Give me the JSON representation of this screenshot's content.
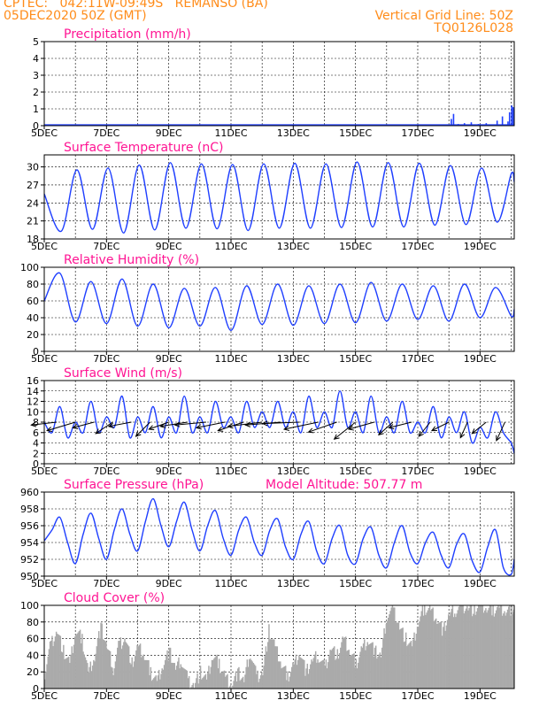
{
  "header": {
    "line1": "CPTEC:   042:11W-09:49S   REMANSO (BA)",
    "line2": "05DEC2020 50Z (GMT)",
    "grid_note": "Vertical Grid Line: 50Z",
    "code": "TQ0126L028"
  },
  "colors": {
    "header": "#ff8c1a",
    "title": "#ff1493",
    "series": "#1f3fff",
    "cloud_fill": "#aaaaaa",
    "axis_text": "#000000"
  },
  "chart_data": [
    {
      "type": "bar",
      "title": "Precipitation (mm/h)",
      "ylim": [
        0,
        5
      ],
      "yticks": [
        0,
        1,
        2,
        3,
        4,
        5
      ],
      "xlim": [
        0,
        15.1
      ],
      "xtick_labels": [
        "5DEC",
        "7DEC",
        "9DEC",
        "11DEC",
        "13DEC",
        "15DEC",
        "17DEC",
        "19DEC"
      ],
      "grid": true,
      "series": [
        {
          "x": [
            13.08,
            13.15,
            13.3,
            13.5,
            13.72,
            13.95,
            14.2,
            14.55,
            14.72,
            14.9,
            14.95,
            15.02,
            15.07
          ],
          "values": [
            0.4,
            0.7,
            0.1,
            0.15,
            0.2,
            0.1,
            0.15,
            0.3,
            0.55,
            0.25,
            0.8,
            1.2,
            1.1
          ]
        }
      ]
    },
    {
      "type": "line",
      "title": "Surface Temperature (nC)",
      "ylim": [
        18,
        32
      ],
      "yticks": [
        18,
        21,
        24,
        27,
        30
      ],
      "xlim": [
        0,
        15.1
      ],
      "xtick_labels": [
        "5DEC",
        "7DEC",
        "9DEC",
        "11DEC",
        "13DEC",
        "15DEC",
        "17DEC",
        "19DEC"
      ],
      "grid": true,
      "series": [
        {
          "x": [
            0,
            0.55,
            1.05,
            1.55,
            2.05,
            2.55,
            3.05,
            3.55,
            4.05,
            4.55,
            5.05,
            5.55,
            6.05,
            6.55,
            7.05,
            7.55,
            8.05,
            8.55,
            9.05,
            9.55,
            10.05,
            10.55,
            11.05,
            11.55,
            12.05,
            12.55,
            13.05,
            13.55,
            14.05,
            14.55,
            15.0,
            15.1
          ],
          "values": [
            25.5,
            19.3,
            29.5,
            19.6,
            29.8,
            19.0,
            30.3,
            19.5,
            30.7,
            19.8,
            30.5,
            19.7,
            30.4,
            19.4,
            30.5,
            19.8,
            30.6,
            19.8,
            30.5,
            19.9,
            30.8,
            20.0,
            30.7,
            20.0,
            30.6,
            20.3,
            30.2,
            20.4,
            29.8,
            20.8,
            28.8,
            27.5
          ]
        }
      ]
    },
    {
      "type": "line",
      "title": "Relative Humidity (%)",
      "ylim": [
        0,
        100
      ],
      "yticks": [
        0,
        20,
        40,
        60,
        80,
        100
      ],
      "xlim": [
        0,
        15.1
      ],
      "xtick_labels": [
        "5DEC",
        "7DEC",
        "9DEC",
        "11DEC",
        "13DEC",
        "15DEC",
        "17DEC",
        "19DEC"
      ],
      "grid": true,
      "series": [
        {
          "x": [
            0,
            0.5,
            1.0,
            1.5,
            2.0,
            2.5,
            3.0,
            3.5,
            4.0,
            4.5,
            5.0,
            5.5,
            6.0,
            6.5,
            7.0,
            7.5,
            8.0,
            8.5,
            9.0,
            9.5,
            10.0,
            10.5,
            11.0,
            11.5,
            12.0,
            12.5,
            13.0,
            13.5,
            14.0,
            14.5,
            15.0,
            15.1
          ],
          "values": [
            60,
            93,
            35,
            83,
            33,
            86,
            30,
            80,
            28,
            75,
            30,
            76,
            25,
            78,
            32,
            80,
            31,
            78,
            33,
            80,
            34,
            82,
            36,
            80,
            38,
            78,
            36,
            80,
            40,
            76,
            42,
            50
          ]
        }
      ]
    },
    {
      "type": "line",
      "title": "Surface Wind (m/s)",
      "ylim": [
        0,
        16
      ],
      "yticks": [
        0,
        2,
        4,
        6,
        8,
        10,
        12,
        14,
        16
      ],
      "xlim": [
        0,
        15.1
      ],
      "xtick_labels": [
        "5DEC",
        "7DEC",
        "9DEC",
        "11DEC",
        "13DEC",
        "15DEC",
        "17DEC",
        "19DEC"
      ],
      "grid": true,
      "series": [
        {
          "x": [
            0,
            0.25,
            0.5,
            0.75,
            1.0,
            1.25,
            1.5,
            1.75,
            2.0,
            2.25,
            2.5,
            2.75,
            3.0,
            3.25,
            3.5,
            3.75,
            4.0,
            4.25,
            4.5,
            4.75,
            5.0,
            5.25,
            5.5,
            5.75,
            6.0,
            6.25,
            6.5,
            6.75,
            7.0,
            7.25,
            7.5,
            7.75,
            8.0,
            8.25,
            8.5,
            8.75,
            9.0,
            9.25,
            9.5,
            9.75,
            10.0,
            10.25,
            10.5,
            10.75,
            11.0,
            11.25,
            11.5,
            11.75,
            12.0,
            12.25,
            12.5,
            12.75,
            13.0,
            13.25,
            13.5,
            13.75,
            14.0,
            14.25,
            14.5,
            14.75,
            15.0,
            15.1
          ],
          "values": [
            8,
            6,
            11,
            5,
            8,
            6,
            12,
            6,
            9,
            7,
            13,
            5,
            9,
            6,
            11,
            5,
            9,
            6,
            13,
            6,
            9,
            6,
            12,
            7,
            9,
            6,
            12,
            7,
            10,
            7,
            12,
            7,
            10,
            6,
            13,
            7,
            10,
            7,
            14,
            7,
            10,
            6,
            13,
            6,
            9,
            6,
            12,
            6,
            8,
            6,
            11,
            5,
            9,
            6,
            10,
            4,
            7,
            5,
            10,
            6,
            4,
            2
          ]
        }
      ],
      "wind_arrows": {
        "x": [
          0.4,
          1.0,
          1.6,
          2.2,
          2.8,
          3.4,
          4.0,
          4.6,
          5.2,
          5.8,
          6.4,
          7.0,
          7.6,
          8.2,
          8.8,
          9.4,
          10.0,
          10.6,
          11.2,
          11.8,
          12.4,
          13.0,
          13.6,
          14.2,
          14.8
        ],
        "u": [
          -1.8,
          -2.0,
          -1.5,
          -1.2,
          -1.6,
          -1.0,
          -1.4,
          -1.9,
          -2.2,
          -2.0,
          -1.8,
          -2.4,
          -2.5,
          -2.6,
          -2.4,
          -2.0,
          -1.5,
          -1.8,
          -1.0,
          -1.6,
          -0.8,
          -1.2,
          -0.5,
          -1.0,
          -0.6
        ],
        "v": [
          -0.2,
          -0.6,
          -0.4,
          -0.8,
          -0.3,
          -1.0,
          -0.5,
          -0.3,
          -0.2,
          -0.4,
          -0.6,
          -0.3,
          -0.2,
          -0.1,
          -0.5,
          -0.7,
          -1.2,
          -0.5,
          -0.9,
          -0.4,
          -1.0,
          -0.6,
          -1.1,
          -0.8,
          -1.3
        ]
      }
    },
    {
      "type": "line",
      "title": "Surface Pressure (hPa)",
      "subtitle": "Model Altitude: 507.77 m",
      "ylim": [
        950,
        960
      ],
      "yticks": [
        950,
        952,
        954,
        956,
        958,
        960
      ],
      "xlim": [
        0,
        15.1
      ],
      "xtick_labels": [
        "5DEC",
        "7DEC",
        "9DEC",
        "11DEC",
        "13DEC",
        "15DEC",
        "17DEC",
        "19DEC"
      ],
      "grid": true,
      "series": [
        {
          "x": [
            0,
            0.25,
            0.5,
            0.75,
            1.0,
            1.25,
            1.5,
            1.75,
            2.0,
            2.25,
            2.5,
            2.75,
            3.0,
            3.25,
            3.5,
            3.75,
            4.0,
            4.25,
            4.5,
            4.75,
            5.0,
            5.25,
            5.5,
            5.75,
            6.0,
            6.25,
            6.5,
            6.75,
            7.0,
            7.25,
            7.5,
            7.75,
            8.0,
            8.25,
            8.5,
            8.75,
            9.0,
            9.25,
            9.5,
            9.75,
            10.0,
            10.25,
            10.5,
            10.75,
            11.0,
            11.25,
            11.5,
            11.75,
            12.0,
            12.25,
            12.5,
            12.75,
            13.0,
            13.25,
            13.5,
            13.75,
            14.0,
            14.25,
            14.5,
            14.75,
            15.0,
            15.1
          ],
          "values": [
            954.2,
            955.5,
            957.0,
            954.0,
            951.5,
            955.0,
            957.5,
            954.5,
            952.0,
            955.5,
            958.0,
            955.0,
            953.0,
            956.5,
            959.2,
            956.0,
            953.5,
            956.5,
            958.8,
            955.5,
            953.0,
            956.0,
            957.8,
            954.5,
            952.5,
            955.5,
            957.0,
            954.0,
            952.5,
            955.5,
            956.8,
            953.5,
            952.0,
            955.0,
            956.5,
            953.0,
            951.5,
            954.5,
            956.0,
            952.5,
            951.5,
            954.5,
            955.8,
            952.5,
            951.0,
            954.0,
            956.0,
            952.8,
            951.5,
            954.0,
            955.2,
            952.5,
            951.0,
            953.8,
            955.0,
            951.8,
            950.5,
            953.5,
            955.5,
            951.0,
            950.2,
            952.0
          ]
        }
      ]
    },
    {
      "type": "area",
      "title": "Cloud Cover (%)",
      "ylim": [
        0,
        100
      ],
      "yticks": [
        0,
        20,
        40,
        60,
        80,
        100
      ],
      "xlim": [
        0,
        15.1
      ],
      "xtick_labels": [
        "5DEC",
        "7DEC",
        "9DEC",
        "11DEC",
        "13DEC",
        "15DEC",
        "17DEC",
        "19DEC"
      ],
      "grid": true,
      "series": [
        {
          "x": [
            0,
            0.2,
            0.4,
            0.6,
            0.8,
            1.0,
            1.2,
            1.4,
            1.6,
            1.8,
            2.0,
            2.2,
            2.4,
            2.6,
            2.8,
            3.0,
            3.2,
            3.4,
            3.6,
            3.8,
            4.0,
            4.2,
            4.4,
            4.6,
            4.8,
            5.0,
            5.2,
            5.4,
            5.6,
            5.8,
            6.0,
            6.2,
            6.4,
            6.6,
            6.8,
            7.0,
            7.2,
            7.4,
            7.6,
            7.8,
            8.0,
            8.2,
            8.4,
            8.6,
            8.8,
            9.0,
            9.2,
            9.4,
            9.6,
            9.8,
            10.0,
            10.2,
            10.4,
            10.6,
            10.8,
            11.0,
            11.2,
            11.4,
            11.6,
            11.8,
            12.0,
            12.2,
            12.4,
            12.6,
            12.8,
            13.0,
            13.2,
            13.4,
            13.6,
            13.8,
            14.0,
            14.2,
            14.4,
            14.6,
            14.8,
            15.0,
            15.1
          ],
          "values": [
            20,
            55,
            70,
            45,
            30,
            70,
            60,
            20,
            40,
            75,
            50,
            25,
            55,
            60,
            30,
            50,
            40,
            20,
            10,
            30,
            45,
            25,
            35,
            10,
            5,
            20,
            10,
            40,
            30,
            15,
            5,
            20,
            10,
            45,
            15,
            20,
            70,
            50,
            30,
            15,
            30,
            45,
            20,
            35,
            40,
            25,
            50,
            40,
            60,
            45,
            30,
            50,
            60,
            45,
            40,
            90,
            95,
            75,
            60,
            50,
            80,
            98,
            95,
            85,
            70,
            90,
            95,
            100,
            98,
            95,
            100,
            97,
            95,
            98,
            95,
            97,
            95
          ]
        }
      ]
    }
  ]
}
